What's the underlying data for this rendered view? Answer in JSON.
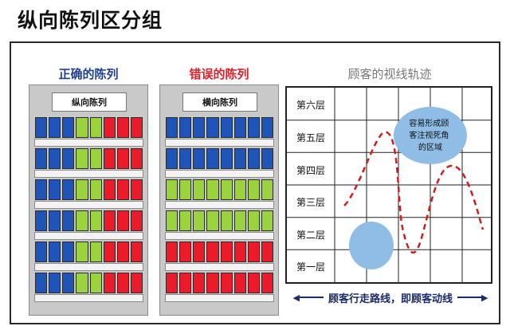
{
  "page_title": "纵向陈列区分组",
  "left_panel": {
    "heading": "正确的陈列",
    "heading_color": "#1f3f8f",
    "label": "纵向陈列",
    "rows": [
      [
        "blue",
        "blue",
        "blue",
        "green",
        "green",
        "red",
        "red",
        "red"
      ],
      [
        "blue",
        "blue",
        "blue",
        "green",
        "green",
        "red",
        "red",
        "red"
      ],
      [
        "blue",
        "blue",
        "blue",
        "green",
        "green",
        "red",
        "red",
        "red"
      ],
      [
        "blue",
        "blue",
        "blue",
        "green",
        "green",
        "red",
        "red",
        "red"
      ],
      [
        "blue",
        "blue",
        "blue",
        "green",
        "green",
        "red",
        "red",
        "red"
      ],
      [
        "blue",
        "blue",
        "blue",
        "green",
        "green",
        "red",
        "red",
        "red"
      ]
    ]
  },
  "middle_panel": {
    "heading": "错误的陈列",
    "heading_color": "#e01f2a",
    "label": "横向陈列",
    "rows": [
      [
        "blue",
        "blue",
        "blue",
        "blue",
        "blue",
        "blue",
        "blue",
        "blue"
      ],
      [
        "blue",
        "blue",
        "blue",
        "blue",
        "blue",
        "blue",
        "blue",
        "blue"
      ],
      [
        "green",
        "green",
        "green",
        "green",
        "green",
        "green",
        "green",
        "green"
      ],
      [
        "green",
        "green",
        "green",
        "green",
        "green",
        "green",
        "green",
        "green"
      ],
      [
        "red",
        "red",
        "red",
        "red",
        "red",
        "red",
        "red",
        "red"
      ],
      [
        "red",
        "red",
        "red",
        "red",
        "red",
        "red",
        "red",
        "red"
      ]
    ]
  },
  "right_panel": {
    "heading": "顾客的视线轨迹",
    "floors": [
      "第六层",
      "第五层",
      "第四层",
      "第三层",
      "第二层",
      "第一层"
    ],
    "blind_spot_text": [
      "容易形成顾",
      "客注视死角",
      "的区域"
    ],
    "path_caption": "顾客行走路线，即顾客动线"
  },
  "colors": {
    "blue": "#1f55b8",
    "green": "#9bd33f",
    "red": "#ec1b2a",
    "ellipse": "#8fbde6",
    "path": "#cc1f1f"
  }
}
